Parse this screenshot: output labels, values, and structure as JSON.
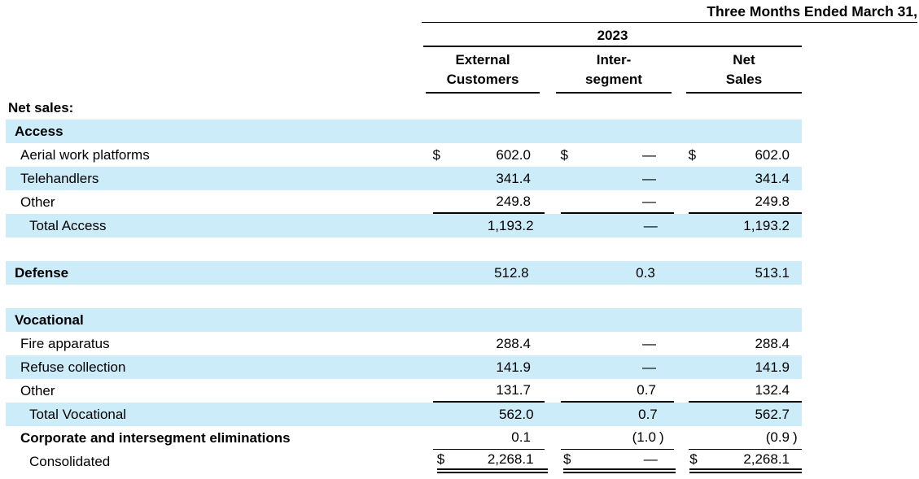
{
  "colors": {
    "row_highlight": "#cdecfa",
    "rule": "#000000",
    "text": "#000000"
  },
  "header": {
    "period_title": "Three Months Ended March 31,",
    "year": "2023",
    "columns": [
      {
        "line1": "External",
        "line2": "Customers"
      },
      {
        "line1": "Inter-",
        "line2": "segment"
      },
      {
        "line1": "Net",
        "line2": "Sales"
      }
    ]
  },
  "table": {
    "rows": [
      {
        "label": "Net sales:",
        "indent": 0,
        "bold": true,
        "shaded": false,
        "cells": []
      },
      {
        "label": "Access",
        "indent": 1,
        "bold": true,
        "shaded": true,
        "cells": []
      },
      {
        "label": "Aerial work platforms",
        "indent": 2,
        "shaded": false,
        "cells": [
          {
            "cur": "$",
            "val": "602.0"
          },
          {
            "cur": "$",
            "val": "—"
          },
          {
            "cur": "$",
            "val": "602.0"
          }
        ]
      },
      {
        "label": "Telehandlers",
        "indent": 2,
        "shaded": true,
        "cells": [
          {
            "val": "341.4"
          },
          {
            "val": "—"
          },
          {
            "val": "341.4"
          }
        ]
      },
      {
        "label": "Other",
        "indent": 2,
        "shaded": false,
        "rule": "u2",
        "cells": [
          {
            "val": "249.8"
          },
          {
            "val": "—"
          },
          {
            "val": "249.8"
          }
        ]
      },
      {
        "label": "Total Access",
        "indent": 3,
        "shaded": true,
        "cells": [
          {
            "val": "1,193.2"
          },
          {
            "val": "—"
          },
          {
            "val": "1,193.2"
          }
        ]
      },
      {
        "spacer": true
      },
      {
        "label": "Defense",
        "indent": 1,
        "bold": true,
        "shaded": true,
        "cells": [
          {
            "val": "512.8"
          },
          {
            "val": "0.3"
          },
          {
            "val": "513.1"
          }
        ]
      },
      {
        "spacer": true
      },
      {
        "label": "Vocational",
        "indent": 1,
        "bold": true,
        "shaded": true,
        "cells": []
      },
      {
        "label": "Fire apparatus",
        "indent": 2,
        "shaded": false,
        "cells": [
          {
            "val": "288.4"
          },
          {
            "val": "—"
          },
          {
            "val": "288.4"
          }
        ]
      },
      {
        "label": "Refuse collection",
        "indent": 2,
        "shaded": true,
        "cells": [
          {
            "val": "141.9"
          },
          {
            "val": "—"
          },
          {
            "val": "141.9"
          }
        ]
      },
      {
        "label": "Other",
        "indent": 2,
        "shaded": false,
        "rule": "u2",
        "cells": [
          {
            "val": "131.7"
          },
          {
            "val": "0.7"
          },
          {
            "val": "132.4"
          }
        ]
      },
      {
        "label": "Total Vocational",
        "indent": 3,
        "shaded": true,
        "cells": [
          {
            "val": "562.0"
          },
          {
            "val": "0.7"
          },
          {
            "val": "562.7"
          }
        ]
      },
      {
        "label": "Corporate and intersegment eliminations",
        "indent": 2,
        "bold": true,
        "shaded": false,
        "rule": "u1",
        "cells": [
          {
            "val": "0.1"
          },
          {
            "val": "(1.0)"
          },
          {
            "val": "(0.9)"
          }
        ]
      },
      {
        "label": "Consolidated",
        "indent": 3,
        "shaded": false,
        "rule": "dbl",
        "cells": [
          {
            "cur": "$",
            "val": "2,268.1"
          },
          {
            "cur": "$",
            "val": "—"
          },
          {
            "cur": "$",
            "val": "2,268.1"
          }
        ]
      }
    ]
  }
}
